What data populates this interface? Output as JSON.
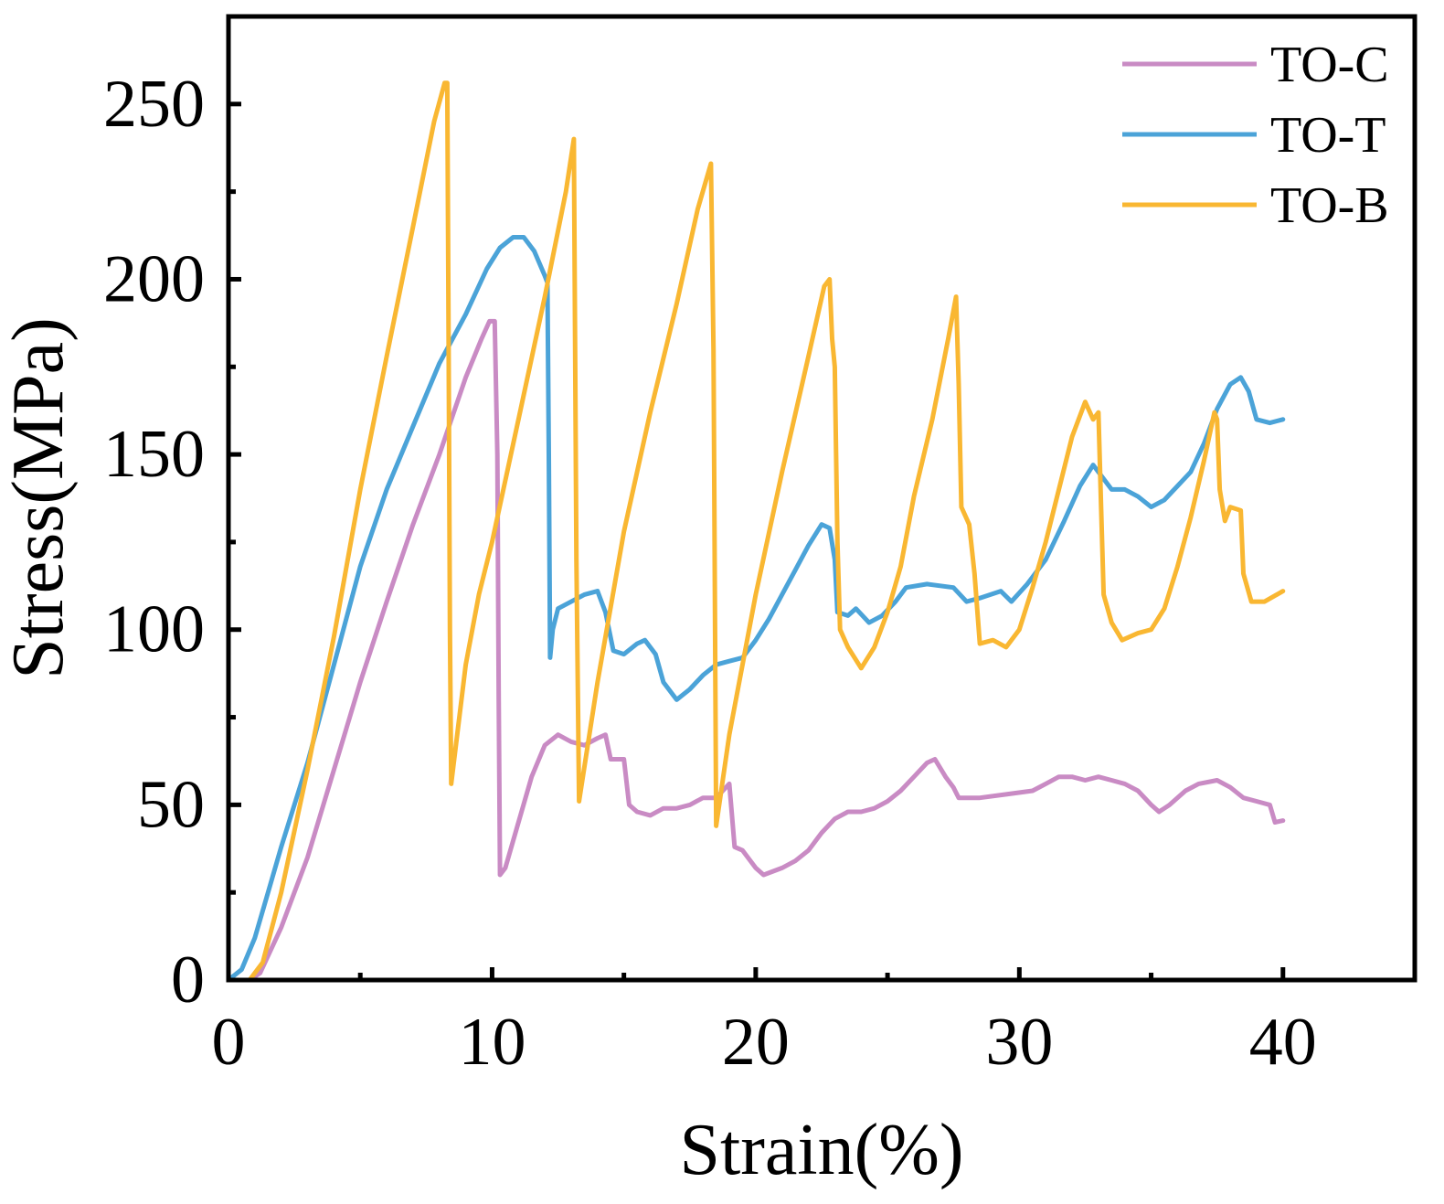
{
  "chart_data": {
    "type": "line",
    "title": "",
    "xlabel": "Strain(%)",
    "ylabel": "Stress(MPa)",
    "xlim": [
      0,
      45
    ],
    "ylim": [
      0,
      275
    ],
    "x_ticks": [
      0,
      10,
      20,
      30,
      40
    ],
    "x_tick_labels": [
      "0",
      "10",
      "20",
      "30",
      "40"
    ],
    "y_ticks": [
      0,
      50,
      100,
      150,
      200,
      250
    ],
    "y_tick_labels": [
      "0",
      "50",
      "100",
      "150",
      "200",
      "250"
    ],
    "legend_position": "top-right",
    "grid": false,
    "series": [
      {
        "name": "TO-C",
        "color": "#C98BC4",
        "points": [
          [
            0.8,
            0
          ],
          [
            1.2,
            2
          ],
          [
            2,
            15
          ],
          [
            3,
            35
          ],
          [
            4,
            60
          ],
          [
            5,
            85
          ],
          [
            6,
            108
          ],
          [
            7,
            130
          ],
          [
            8,
            150
          ],
          [
            9,
            172
          ],
          [
            9.6,
            183
          ],
          [
            9.9,
            188
          ],
          [
            10.1,
            188
          ],
          [
            10.2,
            150
          ],
          [
            10.25,
            80
          ],
          [
            10.3,
            30
          ],
          [
            10.5,
            32
          ],
          [
            11,
            45
          ],
          [
            11.5,
            58
          ],
          [
            12,
            67
          ],
          [
            12.5,
            70
          ],
          [
            13,
            68
          ],
          [
            13.5,
            67
          ],
          [
            14,
            69
          ],
          [
            14.3,
            70
          ],
          [
            14.5,
            63
          ],
          [
            15,
            63
          ],
          [
            15.2,
            50
          ],
          [
            15.5,
            48
          ],
          [
            16,
            47
          ],
          [
            16.5,
            49
          ],
          [
            17,
            49
          ],
          [
            17.5,
            50
          ],
          [
            18,
            52
          ],
          [
            18.5,
            52
          ],
          [
            19,
            56
          ],
          [
            19.2,
            38
          ],
          [
            19.5,
            37
          ],
          [
            20,
            32
          ],
          [
            20.3,
            30
          ],
          [
            21,
            32
          ],
          [
            21.5,
            34
          ],
          [
            22,
            37
          ],
          [
            22.5,
            42
          ],
          [
            23,
            46
          ],
          [
            23.5,
            48
          ],
          [
            24,
            48
          ],
          [
            24.5,
            49
          ],
          [
            25,
            51
          ],
          [
            25.5,
            54
          ],
          [
            26,
            58
          ],
          [
            26.5,
            62
          ],
          [
            26.8,
            63
          ],
          [
            27.2,
            58
          ],
          [
            27.5,
            55
          ],
          [
            27.7,
            52
          ],
          [
            28.5,
            52
          ],
          [
            29.5,
            53
          ],
          [
            30.5,
            54
          ],
          [
            31,
            56
          ],
          [
            31.5,
            58
          ],
          [
            32,
            58
          ],
          [
            32.5,
            57
          ],
          [
            33,
            58
          ],
          [
            33.5,
            57
          ],
          [
            34,
            56
          ],
          [
            34.5,
            54
          ],
          [
            35,
            50
          ],
          [
            35.3,
            48
          ],
          [
            35.7,
            50
          ],
          [
            36.3,
            54
          ],
          [
            36.8,
            56
          ],
          [
            37.5,
            57
          ],
          [
            38,
            55
          ],
          [
            38.5,
            52
          ],
          [
            39,
            51
          ],
          [
            39.5,
            50
          ],
          [
            39.7,
            45
          ],
          [
            40,
            45.5
          ]
        ]
      },
      {
        "name": "TO-T",
        "color": "#4BA3D8",
        "points": [
          [
            0,
            0
          ],
          [
            0.5,
            3
          ],
          [
            1,
            12
          ],
          [
            1.5,
            25
          ],
          [
            2,
            38
          ],
          [
            3,
            62
          ],
          [
            4,
            90
          ],
          [
            5,
            118
          ],
          [
            6,
            140
          ],
          [
            7,
            158
          ],
          [
            8,
            176
          ],
          [
            9,
            190
          ],
          [
            9.8,
            203
          ],
          [
            10.3,
            209
          ],
          [
            10.8,
            212
          ],
          [
            11.2,
            212
          ],
          [
            11.6,
            208
          ],
          [
            12,
            201
          ],
          [
            12.1,
            199
          ],
          [
            12.15,
            150
          ],
          [
            12.2,
            92
          ],
          [
            12.3,
            100
          ],
          [
            12.5,
            106
          ],
          [
            13,
            108
          ],
          [
            13.5,
            110
          ],
          [
            14,
            111
          ],
          [
            14.3,
            105
          ],
          [
            14.6,
            94
          ],
          [
            15,
            93
          ],
          [
            15.5,
            96
          ],
          [
            15.8,
            97
          ],
          [
            16.2,
            93
          ],
          [
            16.5,
            85
          ],
          [
            17,
            80
          ],
          [
            17.5,
            83
          ],
          [
            18,
            87
          ],
          [
            18.5,
            90
          ],
          [
            19,
            91
          ],
          [
            19.5,
            92
          ],
          [
            20,
            97
          ],
          [
            20.5,
            103
          ],
          [
            21,
            110
          ],
          [
            21.5,
            117
          ],
          [
            22,
            124
          ],
          [
            22.5,
            130
          ],
          [
            22.8,
            129
          ],
          [
            23,
            120
          ],
          [
            23.1,
            105
          ],
          [
            23.5,
            104
          ],
          [
            23.8,
            106
          ],
          [
            24.3,
            102
          ],
          [
            24.8,
            104
          ],
          [
            25.3,
            108
          ],
          [
            25.7,
            112
          ],
          [
            26.5,
            113
          ],
          [
            27.5,
            112
          ],
          [
            28,
            108
          ],
          [
            28.5,
            109
          ],
          [
            29.3,
            111
          ],
          [
            29.7,
            108
          ],
          [
            30.3,
            113
          ],
          [
            31,
            120
          ],
          [
            31.7,
            131
          ],
          [
            32.3,
            141
          ],
          [
            32.8,
            147
          ],
          [
            33.2,
            143
          ],
          [
            33.5,
            140
          ],
          [
            34,
            140
          ],
          [
            34.5,
            138
          ],
          [
            35,
            135
          ],
          [
            35.5,
            137
          ],
          [
            36,
            141
          ],
          [
            36.5,
            145
          ],
          [
            37,
            153
          ],
          [
            37.5,
            163
          ],
          [
            38,
            170
          ],
          [
            38.4,
            172
          ],
          [
            38.7,
            168
          ],
          [
            39,
            160
          ],
          [
            39.5,
            159
          ],
          [
            40,
            160
          ]
        ]
      },
      {
        "name": "TO-B",
        "color": "#F9B732",
        "points": [
          [
            0.8,
            0
          ],
          [
            1.3,
            5
          ],
          [
            2,
            25
          ],
          [
            3,
            60
          ],
          [
            4,
            98
          ],
          [
            5,
            140
          ],
          [
            6,
            178
          ],
          [
            7,
            215
          ],
          [
            7.8,
            245
          ],
          [
            8.2,
            256
          ],
          [
            8.3,
            256
          ],
          [
            8.35,
            180
          ],
          [
            8.4,
            100
          ],
          [
            8.45,
            56
          ],
          [
            9,
            90
          ],
          [
            9.5,
            110
          ],
          [
            10,
            125
          ],
          [
            11,
            160
          ],
          [
            12,
            195
          ],
          [
            12.8,
            225
          ],
          [
            13.1,
            240
          ],
          [
            13.15,
            180
          ],
          [
            13.2,
            120
          ],
          [
            13.3,
            51
          ],
          [
            14,
            85
          ],
          [
            15,
            128
          ],
          [
            16,
            162
          ],
          [
            17,
            193
          ],
          [
            17.8,
            220
          ],
          [
            18.3,
            233
          ],
          [
            18.4,
            180
          ],
          [
            18.5,
            44
          ],
          [
            19,
            70
          ],
          [
            20,
            110
          ],
          [
            21,
            145
          ],
          [
            22,
            178
          ],
          [
            22.6,
            198
          ],
          [
            22.8,
            200
          ],
          [
            22.9,
            183
          ],
          [
            23,
            175
          ],
          [
            23.1,
            125
          ],
          [
            23.2,
            100
          ],
          [
            23.5,
            95
          ],
          [
            24,
            89
          ],
          [
            24.5,
            95
          ],
          [
            25,
            105
          ],
          [
            25.5,
            118
          ],
          [
            26,
            138
          ],
          [
            26.7,
            160
          ],
          [
            27.3,
            183
          ],
          [
            27.6,
            195
          ],
          [
            27.7,
            170
          ],
          [
            27.8,
            135
          ],
          [
            28.1,
            130
          ],
          [
            28.3,
            116
          ],
          [
            28.5,
            96
          ],
          [
            29,
            97
          ],
          [
            29.5,
            95
          ],
          [
            30,
            100
          ],
          [
            30.5,
            112
          ],
          [
            31,
            125
          ],
          [
            31.5,
            140
          ],
          [
            32,
            155
          ],
          [
            32.5,
            165
          ],
          [
            32.8,
            160
          ],
          [
            33,
            162
          ],
          [
            33.1,
            135
          ],
          [
            33.2,
            110
          ],
          [
            33.5,
            102
          ],
          [
            33.9,
            97
          ],
          [
            34.5,
            99
          ],
          [
            35,
            100
          ],
          [
            35.5,
            106
          ],
          [
            36,
            118
          ],
          [
            36.5,
            132
          ],
          [
            37,
            148
          ],
          [
            37.4,
            162
          ],
          [
            37.5,
            160
          ],
          [
            37.6,
            140
          ],
          [
            37.8,
            131
          ],
          [
            38,
            135
          ],
          [
            38.4,
            134
          ],
          [
            38.5,
            116
          ],
          [
            38.8,
            108
          ],
          [
            39.3,
            108
          ],
          [
            40,
            111
          ]
        ]
      }
    ]
  }
}
